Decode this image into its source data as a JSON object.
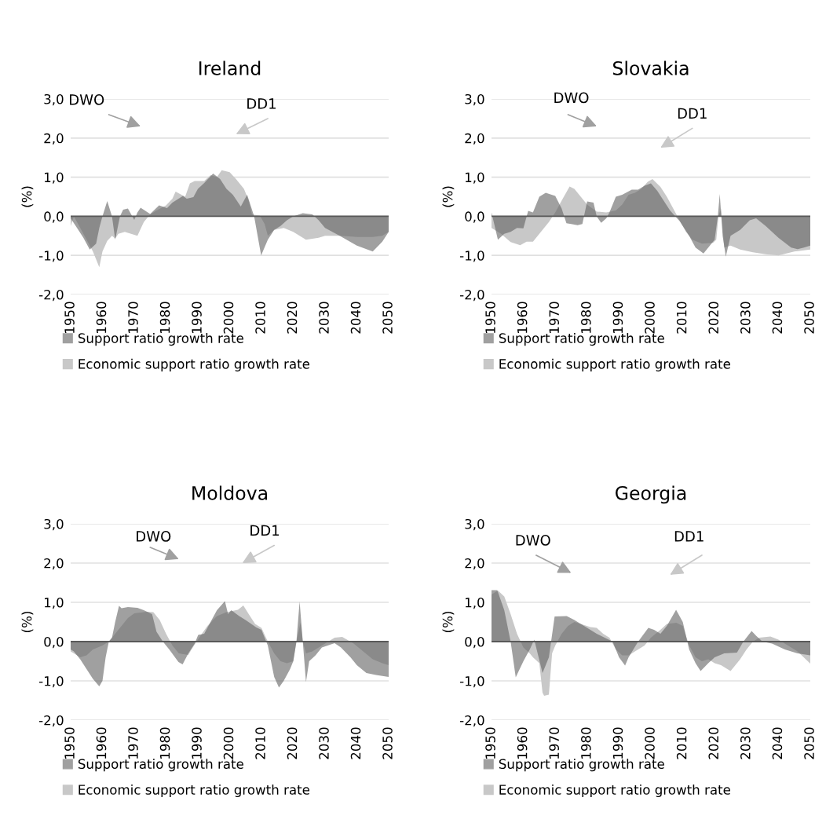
{
  "chart_data": [
    {
      "type": "area",
      "title": "Ireland",
      "ylabel": "(%)",
      "xlim": [
        1950,
        2050
      ],
      "xticks": [
        1950,
        1960,
        1970,
        1980,
        1990,
        2000,
        2010,
        2020,
        2030,
        2040,
        2050
      ],
      "ylim": [
        -2,
        3
      ],
      "yticks": [
        {
          "value": -2,
          "label": "-2,0"
        },
        {
          "value": -1,
          "label": "-1,0"
        },
        {
          "value": 0,
          "label": "0,0"
        },
        {
          "value": 1,
          "label": "1,0"
        },
        {
          "value": 2,
          "label": "2,0"
        },
        {
          "value": 3,
          "label": "3,0"
        }
      ],
      "grid": "y",
      "legend": "bottom",
      "ref_lines": [
        {
          "axis": "y",
          "value": 0,
          "color": "#595959"
        }
      ],
      "annotations": [
        "DWO",
        "DD1"
      ],
      "series": [
        {
          "name": "Economic support ratio growth rate",
          "color": "#c8c8c8",
          "x": [
            1950,
            1951,
            1953,
            1955,
            1957,
            1959,
            1960,
            1961.5,
            1963,
            1964,
            1965,
            1967,
            1969,
            1971,
            1973,
            1975,
            1977,
            1980,
            1982,
            1983,
            1986,
            1987.5,
            1989,
            1992,
            1994,
            1996,
            1997.5,
            2000,
            2002,
            2004.5,
            2006,
            2007,
            2009.5,
            2011,
            2012,
            2014,
            2017,
            2020,
            2024,
            2028,
            2030,
            2035,
            2040,
            2045,
            2048,
            2050
          ],
          "values": [
            -0.25,
            0,
            -0.3,
            -0.6,
            -0.9,
            -1.3,
            -0.9,
            -0.63,
            -0.5,
            -0.57,
            -0.45,
            -0.4,
            -0.45,
            -0.5,
            -0.15,
            0.05,
            0.15,
            0.28,
            0.45,
            0.63,
            0.5,
            0.84,
            0.9,
            0.9,
            1.05,
            1.0,
            1.18,
            1.13,
            0.95,
            0.7,
            0.4,
            0.05,
            0.02,
            -0.2,
            -0.5,
            -0.35,
            -0.3,
            -0.4,
            -0.6,
            -0.55,
            -0.5,
            -0.5,
            -0.53,
            -0.53,
            -0.5,
            -0.4
          ]
        },
        {
          "name": "Support ratio growth rate",
          "color": "#a0a0a0",
          "x": [
            1950,
            1952,
            1954,
            1956,
            1958,
            1959,
            1960,
            1961.5,
            1963,
            1964,
            1965.5,
            1966.5,
            1968,
            1970,
            1971,
            1972,
            1975,
            1977.8,
            1980.3,
            1982,
            1985.3,
            1986.5,
            1988.6,
            1990,
            1992,
            1994.8,
            1997,
            1999,
            2001,
            2003.5,
            2005.5,
            2006.5,
            2007.7,
            2009.9,
            2012,
            2014,
            2016,
            2018,
            2020,
            2023,
            2026,
            2028,
            2030,
            2034.6,
            2040,
            2045,
            2048,
            2050
          ],
          "values": [
            -0.05,
            -0.3,
            -0.55,
            -0.85,
            -0.7,
            -0.3,
            0.0,
            0.39,
            0.0,
            -0.6,
            0.0,
            0.17,
            0.2,
            -0.09,
            0.1,
            0.22,
            0.06,
            0.28,
            0.21,
            0.35,
            0.52,
            0.45,
            0.49,
            0.7,
            0.85,
            1.09,
            0.95,
            0.7,
            0.55,
            0.25,
            0.55,
            0.3,
            0.0,
            -1.0,
            -0.6,
            -0.35,
            -0.25,
            -0.1,
            0.0,
            0.08,
            0.05,
            -0.1,
            -0.3,
            -0.5,
            -0.75,
            -0.9,
            -0.65,
            -0.4
          ]
        }
      ]
    },
    {
      "type": "area",
      "title": "Slovakia",
      "ylabel": "(%)",
      "xlim": [
        1950,
        2050
      ],
      "xticks": [
        1950,
        1960,
        1970,
        1980,
        1990,
        2000,
        2010,
        2020,
        2030,
        2040,
        2050
      ],
      "ylim": [
        -2,
        3
      ],
      "yticks": [
        {
          "value": -2,
          "label": "-2,0"
        },
        {
          "value": -1,
          "label": "-1,0"
        },
        {
          "value": 0,
          "label": "0,0"
        },
        {
          "value": 1,
          "label": "1,0"
        },
        {
          "value": 2,
          "label": "2,0"
        },
        {
          "value": 3,
          "label": "3,0"
        }
      ],
      "grid": "y",
      "legend": "bottom",
      "ref_lines": [
        {
          "axis": "y",
          "value": 0,
          "color": "#595959"
        }
      ],
      "annotations": [
        "DWO",
        "DD1"
      ],
      "series": [
        {
          "name": "Economic support ratio growth rate",
          "color": "#c8c8c8",
          "x": [
            1950,
            1953,
            1956,
            1959,
            1961,
            1963,
            1965,
            1968,
            1970,
            1972,
            1974.5,
            1976,
            1978,
            1980,
            1983,
            1986,
            1989,
            1991,
            1993,
            1995,
            1997,
            1999,
            2000.5,
            2003,
            2005,
            2007,
            2009,
            2011,
            2013,
            2016,
            2019.5,
            2020.5,
            2021.2,
            2022,
            2023,
            2025,
            2028,
            2032,
            2036,
            2040,
            2045,
            2050
          ],
          "values": [
            -0.3,
            -0.45,
            -0.66,
            -0.74,
            -0.65,
            -0.65,
            -0.45,
            -0.15,
            0.1,
            0.4,
            0.76,
            0.7,
            0.5,
            0.3,
            0.12,
            0.1,
            0.15,
            0.3,
            0.55,
            0.6,
            0.7,
            0.88,
            0.95,
            0.75,
            0.5,
            0.2,
            -0.1,
            -0.4,
            -0.6,
            -0.7,
            -0.68,
            -0.6,
            0.0,
            0.2,
            -0.8,
            -0.75,
            -0.85,
            -0.92,
            -0.97,
            -1.0,
            -0.9,
            -0.85
          ]
        },
        {
          "name": "Support ratio growth rate",
          "color": "#a0a0a0",
          "x": [
            1950,
            1952,
            1954,
            1956,
            1958,
            1960,
            1961.5,
            1963,
            1965,
            1967,
            1970,
            1972,
            1973.5,
            1975,
            1977,
            1978.5,
            1980,
            1982,
            1983,
            1984.4,
            1986,
            1987,
            1989,
            1991,
            1994,
            1996,
            1998,
            2000,
            2002,
            2004,
            2006,
            2009,
            2012,
            2014,
            2016.5,
            2018,
            2020,
            2021,
            2021.6,
            2022.5,
            2023.5,
            2025,
            2028,
            2031,
            2033,
            2036,
            2040,
            2044,
            2046,
            2048,
            2050
          ],
          "values": [
            0.1,
            -0.6,
            -0.45,
            -0.4,
            -0.3,
            -0.31,
            0.14,
            0.1,
            0.5,
            0.6,
            0.52,
            0.2,
            -0.18,
            -0.2,
            -0.23,
            -0.2,
            0.38,
            0.35,
            0.0,
            -0.17,
            -0.05,
            0.1,
            0.5,
            0.55,
            0.68,
            0.68,
            0.78,
            0.84,
            0.65,
            0.4,
            0.15,
            -0.12,
            -0.5,
            -0.8,
            -0.95,
            -0.8,
            -0.6,
            0.0,
            0.57,
            -0.5,
            -1.03,
            -0.5,
            -0.35,
            -0.1,
            -0.05,
            -0.25,
            -0.55,
            -0.8,
            -0.84,
            -0.8,
            -0.75
          ]
        }
      ]
    },
    {
      "type": "area",
      "title": "Moldova",
      "ylabel": "(%)",
      "xlim": [
        1950,
        2050
      ],
      "xticks": [
        1950,
        1960,
        1970,
        1980,
        1990,
        2000,
        2010,
        2020,
        2030,
        2040,
        2050
      ],
      "ylim": [
        -2,
        3
      ],
      "yticks": [
        {
          "value": -2,
          "label": "-2,0"
        },
        {
          "value": -1,
          "label": "-1,0"
        },
        {
          "value": 0,
          "label": "0,0"
        },
        {
          "value": 1,
          "label": "1,0"
        },
        {
          "value": 2,
          "label": "2,0"
        },
        {
          "value": 3,
          "label": "3,0"
        }
      ],
      "grid": "y",
      "legend": "bottom",
      "ref_lines": [
        {
          "axis": "y",
          "value": 0,
          "color": "#595959"
        }
      ],
      "annotations": [
        "DWO",
        "DD1"
      ],
      "series": [
        {
          "name": "Economic support ratio growth rate",
          "color": "#c8c8c8",
          "x": [
            1950,
            1953,
            1955,
            1957,
            1960,
            1962,
            1964,
            1966,
            1968,
            1970,
            1974,
            1976,
            1978,
            1980,
            1982,
            1984,
            1987,
            1988,
            1990,
            1993,
            1996,
            1999,
            2002.6,
            2004.3,
            2006,
            2008,
            2010,
            2012,
            2014,
            2016,
            2018,
            2020,
            2021,
            2022.3,
            2023,
            2024,
            2026,
            2029,
            2033,
            2035.4,
            2039,
            2042,
            2045,
            2048,
            2050
          ],
          "values": [
            -0.25,
            -0.4,
            -0.35,
            -0.2,
            -0.1,
            0.0,
            0.2,
            0.4,
            0.6,
            0.72,
            0.76,
            0.75,
            0.55,
            0.2,
            -0.1,
            -0.3,
            -0.34,
            -0.2,
            0.05,
            0.4,
            0.65,
            0.75,
            0.81,
            0.92,
            0.7,
            0.45,
            0.35,
            0.0,
            -0.3,
            -0.5,
            -0.55,
            -0.5,
            0.0,
            0.49,
            0.0,
            -0.3,
            -0.25,
            -0.1,
            0.1,
            0.12,
            -0.05,
            -0.25,
            -0.45,
            -0.55,
            -0.6
          ]
        },
        {
          "name": "Support ratio growth rate",
          "color": "#a0a0a0",
          "x": [
            1950,
            1951,
            1953,
            1955,
            1957,
            1959,
            1960,
            1961,
            1962,
            1963,
            1964,
            1965.2,
            1966,
            1968,
            1971,
            1973,
            1975.6,
            1977,
            1979,
            1981,
            1983.9,
            1985.2,
            1987,
            1989,
            1990.1,
            1992,
            1994,
            1996,
            1998.5,
            1999.5,
            2000.5,
            2003,
            2005,
            2008.4,
            2010,
            2012,
            2014,
            2015.5,
            2017,
            2019,
            2020,
            2021,
            2022,
            2023,
            2024,
            2025,
            2027,
            2029,
            2033,
            2035,
            2038,
            2040,
            2043,
            2046,
            2050
          ],
          "values": [
            -0.2,
            -0.25,
            -0.45,
            -0.7,
            -0.95,
            -1.14,
            -1.0,
            -0.4,
            0.0,
            0.1,
            0.5,
            0.91,
            0.85,
            0.88,
            0.86,
            0.8,
            0.7,
            0.25,
            0.0,
            -0.2,
            -0.52,
            -0.58,
            -0.3,
            -0.05,
            0.17,
            0.2,
            0.5,
            0.8,
            1.03,
            0.7,
            0.8,
            0.65,
            0.55,
            0.36,
            0.3,
            -0.1,
            -0.9,
            -1.17,
            -1.0,
            -0.7,
            -0.5,
            0.0,
            1.02,
            0.0,
            -1.03,
            -0.5,
            -0.35,
            -0.15,
            -0.04,
            -0.15,
            -0.4,
            -0.6,
            -0.8,
            -0.85,
            -0.9
          ]
        }
      ]
    },
    {
      "type": "area",
      "title": "Georgia",
      "ylabel": "(%)",
      "xlim": [
        1950,
        2050
      ],
      "xticks": [
        1950,
        1960,
        1970,
        1980,
        1990,
        2000,
        2010,
        2020,
        2030,
        2040,
        2050
      ],
      "ylim": [
        -2,
        3
      ],
      "yticks": [
        {
          "value": -2,
          "label": "-2,0"
        },
        {
          "value": -1,
          "label": "-1,0"
        },
        {
          "value": 0,
          "label": "0,0"
        },
        {
          "value": 1,
          "label": "1,0"
        },
        {
          "value": 2,
          "label": "2,0"
        },
        {
          "value": 3,
          "label": "3,0"
        }
      ],
      "grid": "y",
      "legend": "bottom",
      "ref_lines": [
        {
          "axis": "y",
          "value": 0,
          "color": "#595959"
        }
      ],
      "annotations": [
        "DWO",
        "DD1"
      ],
      "series": [
        {
          "name": "Economic support ratio growth rate",
          "color": "#c8c8c8",
          "x": [
            1950,
            1952,
            1954,
            1956,
            1958,
            1960,
            1962,
            1963,
            1965,
            1966,
            1966.5,
            1968,
            1969,
            1970,
            1972,
            1974,
            1976,
            1978,
            1981,
            1983,
            1985,
            1987,
            1989,
            1991,
            1993,
            1995,
            1998,
            2000,
            2003,
            2005,
            2008,
            2010,
            2012,
            2014,
            2016,
            2018,
            2020,
            2022,
            2025,
            2026,
            2028,
            2030,
            2032,
            2034,
            2037.5,
            2040,
            2043,
            2046,
            2050
          ],
          "values": [
            1.2,
            1.3,
            1.15,
            0.7,
            0.2,
            -0.15,
            -0.3,
            -0.4,
            -0.55,
            -1.3,
            -1.38,
            -1.35,
            -0.3,
            -0.1,
            0.2,
            0.4,
            0.5,
            0.45,
            0.37,
            0.35,
            0.2,
            0.1,
            -0.2,
            -0.35,
            -0.35,
            -0.25,
            -0.1,
            0.1,
            0.3,
            0.45,
            0.48,
            0.4,
            -0.1,
            -0.4,
            -0.5,
            -0.45,
            -0.55,
            -0.6,
            -0.75,
            -0.65,
            -0.45,
            -0.2,
            0.0,
            0.1,
            0.13,
            0.05,
            -0.1,
            -0.25,
            -0.56
          ]
        },
        {
          "name": "Support ratio growth rate",
          "color": "#a0a0a0",
          "x": [
            1950,
            1951.8,
            1954,
            1956,
            1957.6,
            1960,
            1962,
            1963.4,
            1966,
            1968,
            1969.8,
            1973.6,
            1976,
            1978,
            1980,
            1983,
            1986,
            1988,
            1990,
            1991.9,
            1993,
            1996,
            1999.2,
            2001,
            2003,
            2005,
            2007.9,
            2010,
            2012,
            2014,
            2015.6,
            2018,
            2020,
            2023,
            2027,
            2029,
            2031.6,
            2033,
            2035,
            2038,
            2042,
            2046,
            2050
          ],
          "values": [
            1.31,
            1.31,
            0.8,
            0.0,
            -0.91,
            -0.5,
            -0.2,
            0.05,
            -0.8,
            -0.4,
            0.64,
            0.65,
            0.55,
            0.45,
            0.35,
            0.2,
            0.08,
            0.0,
            -0.4,
            -0.61,
            -0.4,
            0.0,
            0.35,
            0.3,
            0.2,
            0.4,
            0.81,
            0.5,
            -0.2,
            -0.55,
            -0.75,
            -0.55,
            -0.4,
            -0.3,
            -0.28,
            0.0,
            0.27,
            0.15,
            0.0,
            -0.05,
            -0.2,
            -0.3,
            -0.35
          ]
        }
      ]
    }
  ]
}
